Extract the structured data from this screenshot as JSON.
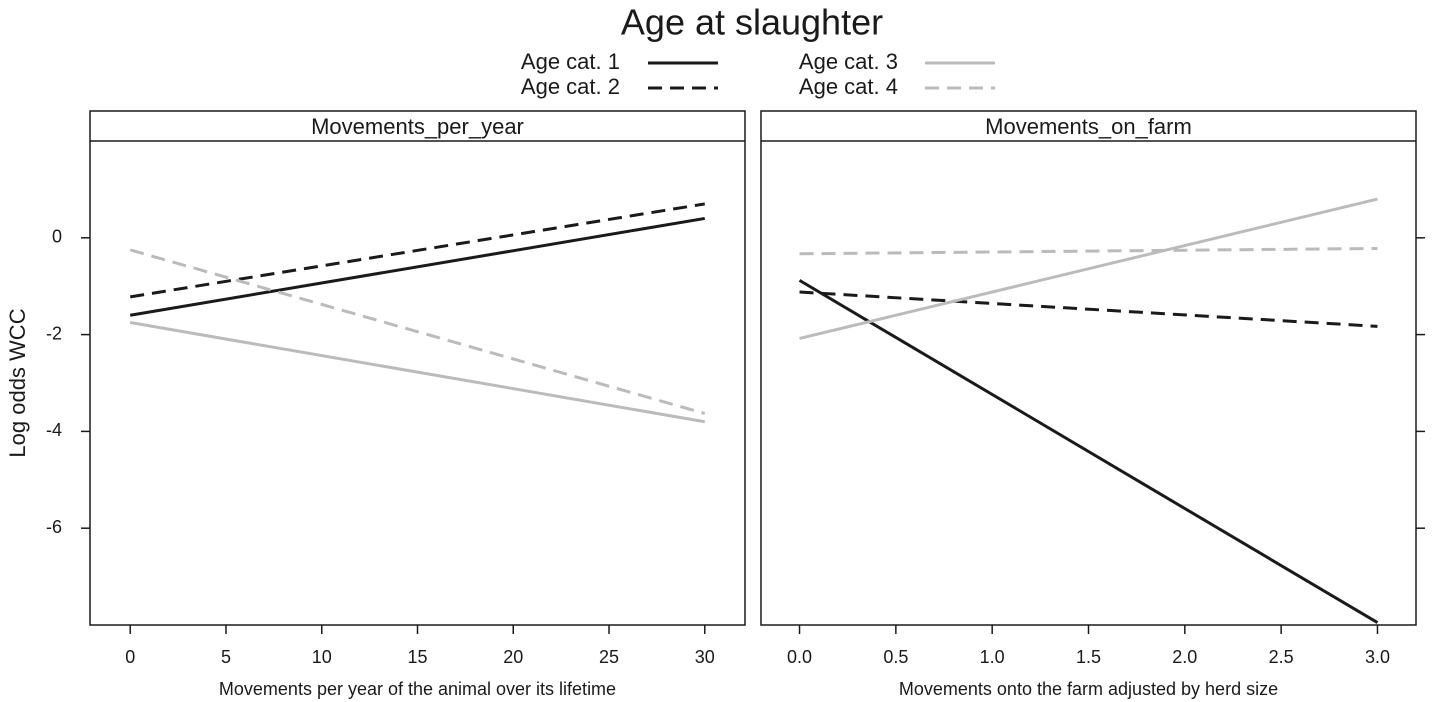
{
  "chart_data": [
    {
      "type": "line",
      "title": "Age at slaughter",
      "ylabel": "Log odds WCC",
      "panel_title": "Movements_per_year",
      "xlabel": "Movements per year of the animal over its lifetime",
      "x": [
        0,
        30
      ],
      "xlim": [
        -2.1,
        32.1
      ],
      "xticks": [
        0,
        5,
        10,
        15,
        20,
        25,
        30
      ],
      "ylim": [
        -8,
        2
      ],
      "yticks": [
        -6,
        -4,
        -2,
        0
      ],
      "grid": false,
      "series": [
        {
          "name": "Age cat. 1",
          "color": "#1a1a1a",
          "dashed": false,
          "values": [
            -1.6,
            0.4
          ]
        },
        {
          "name": "Age cat. 2",
          "color": "#1a1a1a",
          "dashed": true,
          "values": [
            -1.22,
            0.7
          ]
        },
        {
          "name": "Age cat. 3",
          "color": "#bbbbbb",
          "dashed": false,
          "values": [
            -1.75,
            -3.8
          ]
        },
        {
          "name": "Age cat. 4",
          "color": "#bbbbbb",
          "dashed": true,
          "values": [
            -0.25,
            -3.63
          ]
        }
      ]
    },
    {
      "type": "line",
      "panel_title": "Movements_on_farm",
      "xlabel": "Movements onto the farm adjusted by herd size",
      "x": [
        0,
        3
      ],
      "xlim": [
        -0.2,
        3.2
      ],
      "xticks": [
        {
          "value": 0,
          "label": "0.0"
        },
        0.5,
        {
          "value": 1,
          "label": "1.0"
        },
        1.5,
        {
          "value": 2,
          "label": "2.0"
        },
        2.5,
        {
          "value": 3,
          "label": "3.0"
        }
      ],
      "ylim": [
        -8,
        2
      ],
      "yticks": [
        -6,
        -4,
        -2,
        0
      ],
      "grid": false,
      "series": [
        {
          "color": "#1a1a1a",
          "dashed": false,
          "values": [
            -0.88,
            -7.95
          ]
        },
        {
          "color": "#1a1a1a",
          "dashed": true,
          "values": [
            -1.12,
            -1.83
          ]
        },
        {
          "color": "#bbbbbb",
          "dashed": false,
          "values": [
            -2.08,
            0.8
          ]
        },
        {
          "color": "#bbbbbb",
          "dashed": true,
          "values": [
            -0.33,
            -0.22
          ]
        }
      ]
    }
  ]
}
